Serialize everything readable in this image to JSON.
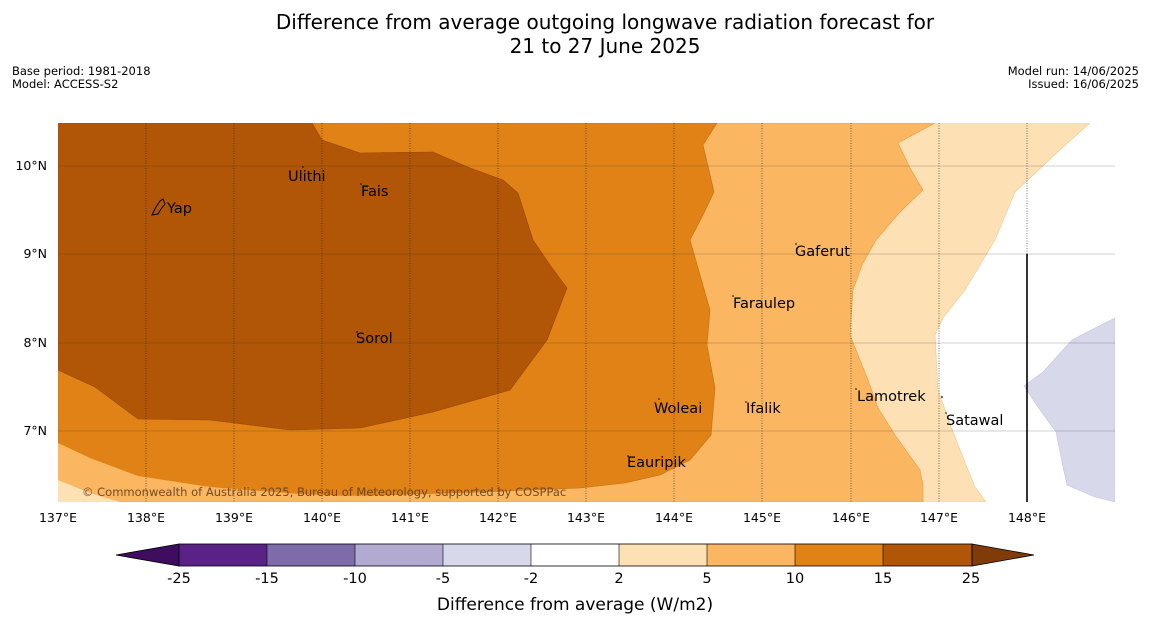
{
  "header": {
    "title_line1": "Difference from average outgoing longwave radiation forecast for",
    "title_line2": "21 to 27 June 2025",
    "base_period": "Base period: 1981-2018",
    "model": "Model: ACCESS-S2",
    "model_run": "Model run: 14/06/2025",
    "issued": "Issued: 16/06/2025"
  },
  "map": {
    "lon_labels": [
      "137°E",
      "138°E",
      "139°E",
      "140°E",
      "141°E",
      "142°E",
      "143°E",
      "144°E",
      "145°E",
      "146°E",
      "147°E",
      "148°E"
    ],
    "lat_labels": [
      "10°N",
      "9°N",
      "8°N",
      "7°N"
    ],
    "copyright": "© Commonwealth of Australia 2025, Bureau of Meteorology, supported by COSPPac",
    "places": {
      "yap": "Yap",
      "ulithi": "Ulithi",
      "fais": "Fais",
      "gaferut": "Gaferut",
      "faraulep": "Faraulep",
      "sorol": "Sorol",
      "woleai": "Woleai",
      "ifalik": "Ifalik",
      "lamotrek": "Lamotrek",
      "satawal": "Satawal",
      "eauripik": "Eauripik"
    }
  },
  "colorbar": {
    "ticks": [
      "-25",
      "-15",
      "-10",
      "-5",
      "-2",
      "2",
      "5",
      "10",
      "15",
      "25"
    ],
    "label": "Difference from average (W/m2)",
    "colors": {
      "below_min": "#3f0d60",
      "n25_n15": "#5a2287",
      "n15_n10": "#7e6ba9",
      "n10_n5": "#b3aad2",
      "n5_n2": "#d8d8eb",
      "n2_2": "#ffffff",
      "p2_5": "#fee0b5",
      "p5_10": "#fbb661",
      "p10_15": "#e08215",
      "p15_25": "#b15506",
      "above_max": "#7f3b08"
    }
  }
}
